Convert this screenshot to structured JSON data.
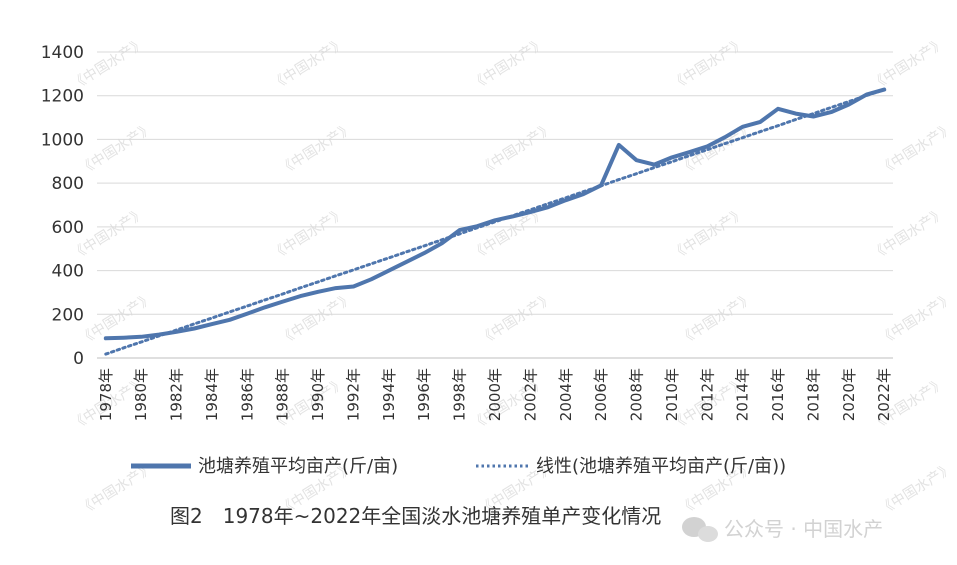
{
  "chart_data": {
    "type": "line",
    "title": "",
    "xlabel": "",
    "ylabel": "",
    "ylim": [
      0,
      1400
    ],
    "yticks": [
      0,
      200,
      400,
      600,
      800,
      1000,
      1200,
      1400
    ],
    "grid": "horizontal",
    "legend_position": "bottom",
    "categories": [
      "1978年",
      "1979年",
      "1980年",
      "1981年",
      "1982年",
      "1983年",
      "1984年",
      "1985年",
      "1986年",
      "1987年",
      "1988年",
      "1989年",
      "1990年",
      "1991年",
      "1992年",
      "1993年",
      "1994年",
      "1995年",
      "1996年",
      "1997年",
      "1998年",
      "1999年",
      "2000年",
      "2001年",
      "2002年",
      "2003年",
      "2004年",
      "2005年",
      "2006年",
      "2007年",
      "2008年",
      "2009年",
      "2010年",
      "2011年",
      "2012年",
      "2013年",
      "2014年",
      "2015年",
      "2016年",
      "2017年",
      "2018年",
      "2019年",
      "2020年",
      "2021年",
      "2022年"
    ],
    "tick_labels": [
      "1978年",
      "1980年",
      "1982年",
      "1984年",
      "1986年",
      "1988年",
      "1990年",
      "1992年",
      "1994年",
      "1996年",
      "1998年",
      "2000年",
      "2002年",
      "2004年",
      "2006年",
      "2008年",
      "2010年",
      "2012年",
      "2014年",
      "2016年",
      "2018年",
      "2020年",
      "2022年"
    ],
    "series": [
      {
        "name": "池塘养殖平均亩产(斤/亩)",
        "style": "solid",
        "color": "#4f76ad",
        "values": [
          90,
          93,
          97,
          107,
          120,
          135,
          155,
          175,
          203,
          232,
          258,
          283,
          303,
          320,
          327,
          360,
          400,
          440,
          480,
          525,
          585,
          603,
          630,
          648,
          668,
          690,
          722,
          750,
          790,
          975,
          905,
          885,
          918,
          942,
          968,
          1010,
          1058,
          1080,
          1140,
          1118,
          1105,
          1125,
          1160,
          1205,
          1228
        ]
      },
      {
        "name": "线性(池塘养殖平均亩产(斤/亩))",
        "style": "dotted",
        "color": "#4f76ad",
        "values": [
          18,
          46,
          73,
          101,
          128,
          156,
          183,
          211,
          238,
          266,
          293,
          321,
          348,
          376,
          403,
          431,
          458,
          486,
          513,
          541,
          568,
          596,
          623,
          651,
          678,
          706,
          733,
          761,
          788,
          816,
          843,
          871,
          898,
          926,
          953,
          981,
          1008,
          1036,
          1063,
          1091,
          1118,
          1146,
          1173,
          1201,
          1228
        ]
      }
    ],
    "caption": "图2　1978年~2022年全国淡水池塘养殖单产变化情况"
  },
  "watermark": {
    "text": "《中国水产》",
    "footer": "公众号 · 中国水产"
  }
}
